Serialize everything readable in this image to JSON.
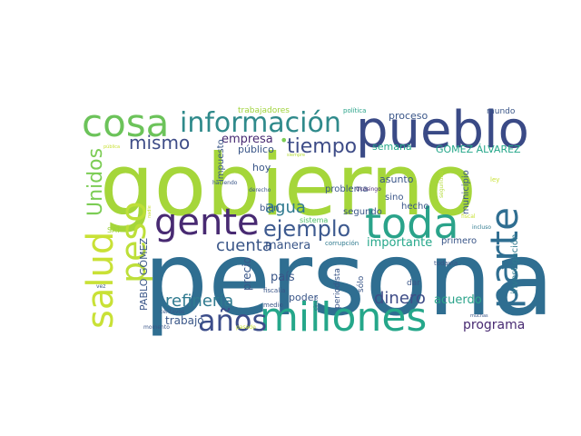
{
  "words": [
    {
      "id": "gobierno",
      "text": "gobierno",
      "color": "#a5d63a"
    },
    {
      "id": "persona",
      "text": "persona",
      "color": "#2f6e91"
    },
    {
      "id": "pueblo",
      "text": "pueblo",
      "color": "#3a4a86"
    },
    {
      "id": "cosa",
      "text": "cosa",
      "color": "#6cc35a"
    },
    {
      "id": "informacion",
      "text": "información",
      "color": "#2f8a8b"
    },
    {
      "id": "toda",
      "text": "toda",
      "color": "#2aa38a"
    },
    {
      "id": "parte",
      "text": "parte",
      "color": "#2f6e91"
    },
    {
      "id": "gente",
      "text": "gente",
      "color": "#482a72"
    },
    {
      "id": "millones",
      "text": "millones",
      "color": "#25a78a"
    },
    {
      "id": "salud",
      "text": "salud",
      "color": "#c9e136"
    },
    {
      "id": "peso",
      "text": "peso",
      "color": "#bddf39"
    },
    {
      "id": "anos",
      "text": "años",
      "color": "#3c4d8a"
    },
    {
      "id": "ejemplo",
      "text": "ejemplo",
      "color": "#3d5a8f"
    },
    {
      "id": "unidos",
      "text": "Unidos",
      "color": "#7ccd55"
    },
    {
      "id": "mismo",
      "text": "mismo",
      "color": "#3e4c87"
    },
    {
      "id": "tiempo",
      "text": "tiempo",
      "color": "#3e4c87"
    },
    {
      "id": "agua",
      "text": "agua",
      "color": "#2f7a8f"
    },
    {
      "id": "cuenta",
      "text": "cuenta",
      "color": "#3a5688"
    },
    {
      "id": "refineria",
      "text": "refinería",
      "color": "#2f7a8f"
    },
    {
      "id": "dinero",
      "text": "dinero",
      "color": "#3e4c87"
    },
    {
      "id": "programa",
      "text": "programa",
      "color": "#482a72"
    },
    {
      "id": "empresa",
      "text": "empresa",
      "color": "#482a72"
    },
    {
      "id": "manera",
      "text": "manera",
      "color": "#3a5688"
    },
    {
      "id": "importante",
      "text": "importante",
      "color": "#25a78a"
    },
    {
      "id": "acuerdo",
      "text": "acuerdo",
      "color": "#2aa38a"
    },
    {
      "id": "pais",
      "text": "país",
      "color": "#3a5688"
    },
    {
      "id": "trabajo",
      "text": "trabajo",
      "color": "#3a5688"
    },
    {
      "id": "precio",
      "text": "precio",
      "color": "#3a5688"
    },
    {
      "id": "pablo",
      "text": "PABLO GÓMEZ",
      "color": "#3a5688"
    },
    {
      "id": "proceso",
      "text": "proceso",
      "color": "#3a5688"
    },
    {
      "id": "semana",
      "text": "semana",
      "color": "#25a78a"
    },
    {
      "id": "gomez",
      "text": "GÓMEZ ÁLVAREZ",
      "color": "#25a78a"
    },
    {
      "id": "publico",
      "text": "público",
      "color": "#3a5688"
    },
    {
      "id": "impuesto",
      "text": "impuesto",
      "color": "#3a5688"
    },
    {
      "id": "hoy",
      "text": "hoy",
      "color": "#3a5688"
    },
    {
      "id": "bien",
      "text": "bien",
      "color": "#3a5688"
    },
    {
      "id": "poder",
      "text": "poder",
      "color": "#3a5688"
    },
    {
      "id": "asunto",
      "text": "asunto",
      "color": "#3a5688"
    },
    {
      "id": "problema",
      "text": "problema",
      "color": "#3a5688"
    },
    {
      "id": "sino",
      "text": "sino",
      "color": "#3a5688"
    },
    {
      "id": "hecho",
      "text": "hecho",
      "color": "#3a5688"
    },
    {
      "id": "municipio",
      "text": "municipio",
      "color": "#3a5688"
    },
    {
      "id": "segundo",
      "text": "segundo",
      "color": "#3a5688"
    },
    {
      "id": "primero",
      "text": "primero",
      "color": "#3a5688"
    },
    {
      "id": "investigacion",
      "text": "investigación",
      "color": "#2f7a8f"
    },
    {
      "id": "mundo",
      "text": "mundo",
      "color": "#3a5688"
    },
    {
      "id": "trabajadores",
      "text": "trabajadores",
      "color": "#9fd33c"
    },
    {
      "id": "politica",
      "text": "política",
      "color": "#2aa38a"
    },
    {
      "id": "sistema",
      "text": "sistema",
      "color": "#4fbf6a"
    },
    {
      "id": "periodista",
      "text": "periodista",
      "color": "#3a5688"
    },
    {
      "id": "solo",
      "text": "sólo",
      "color": "#3a5688"
    },
    {
      "id": "dar",
      "text": "dar",
      "color": "#3a5688"
    },
    {
      "id": "todavia",
      "text": "todavía",
      "color": "#3a5688"
    },
    {
      "id": "fiscalia",
      "text": "fiscalía",
      "color": "#3a5688"
    },
    {
      "id": "medio",
      "text": "medio",
      "color": "#3a5688"
    },
    {
      "id": "corrupcion",
      "text": "corrupción",
      "color": "#2f7a8f"
    },
    {
      "id": "sat",
      "text": "SAT",
      "color": "#9fd33c"
    },
    {
      "id": "haciendo",
      "text": "haciendo",
      "color": "#3a5688"
    },
    {
      "id": "derecho",
      "text": "derecho",
      "color": "#3a5688"
    },
    {
      "id": "ocosingo",
      "text": "Ocosingo",
      "color": "#482a72"
    },
    {
      "id": "seguridad",
      "text": "seguridad",
      "color": "#b5dc3a"
    },
    {
      "id": "ley",
      "text": "ley",
      "color": "#c9e136"
    },
    {
      "id": "fiscal",
      "text": "fiscal",
      "color": "#c9e136"
    },
    {
      "id": "incluso",
      "text": "incluso",
      "color": "#2f7a8f"
    },
    {
      "id": "siempre",
      "text": "siempre",
      "color": "#b5dc3a"
    },
    {
      "id": "publica",
      "text": "pública",
      "color": "#c9e136"
    },
    {
      "id": "vez",
      "text": "vez",
      "color": "#3a5688"
    },
    {
      "id": "centavos",
      "text": "centavos",
      "color": "#3a5688"
    },
    {
      "id": "momento",
      "text": "momento",
      "color": "#3a5688"
    },
    {
      "id": "muchas",
      "text": "muchas",
      "color": "#3a5688"
    },
    {
      "id": "cinco",
      "text": "cinco",
      "color": "#3a5688"
    },
    {
      "id": "pasado",
      "text": "pasado",
      "color": "#c9e136"
    },
    {
      "id": "nadie",
      "text": "nadie",
      "color": "#c9e136"
    },
    {
      "id": "dot",
      "text": "•",
      "color": "#7ccd55"
    }
  ]
}
